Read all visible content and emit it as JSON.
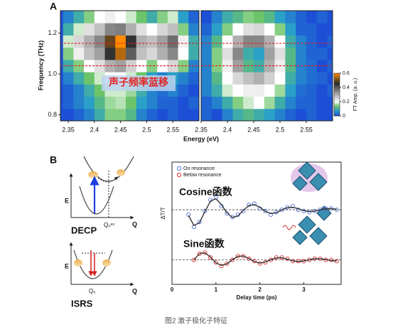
{
  "figure_labels": [
    "A",
    "B"
  ],
  "chart_data": [
    {
      "type": "heatmap",
      "ylabel": "Frequency (THz)",
      "xlabel": "Energy (eV)",
      "annotation": "声子频率蓝移",
      "xlim": [
        2.335,
        2.6
      ],
      "ylim": [
        0.77,
        1.31
      ],
      "xticks": [
        2.35,
        2.4,
        2.45,
        2.5,
        2.55
      ],
      "yticks": [
        0.8,
        {
          "value": 1,
          "label": "1.0"
        },
        1.2
      ],
      "reference_lines": [
        1.04,
        1.15
      ],
      "reference_color": "#e02020",
      "zlim": [
        0,
        0.6
      ],
      "colorscale": [
        [
          0,
          "#1d4fd6"
        ],
        [
          0.08,
          "#2aa0c8"
        ],
        [
          0.14,
          "#6cc46a"
        ],
        [
          0.2,
          "#ffffff"
        ],
        [
          0.32,
          "#a0a0a0"
        ],
        [
          0.46,
          "#2a2a2a"
        ],
        [
          0.6,
          "#ff8a00"
        ]
      ],
      "x": [
        2.35,
        2.37,
        2.39,
        2.41,
        2.43,
        2.45,
        2.47,
        2.49,
        2.51,
        2.53,
        2.55,
        2.57,
        2.59
      ],
      "y": [
        0.8,
        0.86,
        0.92,
        0.98,
        1.04,
        1.1,
        1.16,
        1.22,
        1.28
      ],
      "z": [
        [
          0,
          0.02,
          0.05,
          0.1,
          0.15,
          0.15,
          0.12,
          0.05,
          0.02,
          0,
          0.02,
          0,
          0
        ],
        [
          0.02,
          0.05,
          0.08,
          0.12,
          0.16,
          0.17,
          0.14,
          0.08,
          0.05,
          0.02,
          0.02,
          0,
          0.02
        ],
        [
          0.02,
          0.05,
          0.1,
          0.14,
          0.18,
          0.18,
          0.16,
          0.1,
          0.05,
          0.03,
          0.05,
          0.02,
          0
        ],
        [
          0.05,
          0.1,
          0.14,
          0.18,
          0.2,
          0.2,
          0.18,
          0.14,
          0.08,
          0.05,
          0.08,
          0.05,
          0.02
        ],
        [
          0.1,
          0.15,
          0.2,
          0.24,
          0.3,
          0.32,
          0.26,
          0.2,
          0.15,
          0.2,
          0.25,
          0.15,
          0.05
        ],
        [
          0.15,
          0.22,
          0.28,
          0.32,
          0.45,
          0.55,
          0.4,
          0.28,
          0.25,
          0.3,
          0.35,
          0.2,
          0.1
        ],
        [
          0.18,
          0.25,
          0.3,
          0.35,
          0.5,
          0.6,
          0.45,
          0.3,
          0.28,
          0.32,
          0.38,
          0.22,
          0.1
        ],
        [
          0.1,
          0.18,
          0.24,
          0.28,
          0.35,
          0.36,
          0.3,
          0.24,
          0.2,
          0.25,
          0.28,
          0.15,
          0.05
        ],
        [
          0.05,
          0.1,
          0.15,
          0.2,
          0.22,
          0.2,
          0.18,
          0.14,
          0.1,
          0.15,
          0.18,
          0.08,
          0.02
        ]
      ]
    },
    {
      "type": "heatmap",
      "xlim": [
        2.35,
        2.6
      ],
      "ylim": [
        0.77,
        1.31
      ],
      "xticks": [
        2.35,
        2.4,
        2.45,
        2.5,
        2.55
      ],
      "reference_lines": [
        1.04,
        1.15
      ],
      "reference_color": "#e02020",
      "zlim": [
        0,
        0.6
      ],
      "colorscale": [
        [
          0,
          "#1d4fd6"
        ],
        [
          0.08,
          "#2aa0c8"
        ],
        [
          0.14,
          "#6cc46a"
        ],
        [
          0.2,
          "#ffffff"
        ],
        [
          0.32,
          "#a0a0a0"
        ],
        [
          0.46,
          "#2a2a2a"
        ],
        [
          0.6,
          "#ff8a00"
        ]
      ],
      "colorbar": {
        "label": "FT Amp. (a. u.)",
        "ticks": [
          0,
          0.2,
          0.4,
          0.6
        ]
      },
      "x": [
        2.36,
        2.38,
        2.4,
        2.42,
        2.44,
        2.46,
        2.48,
        2.5,
        2.52,
        2.54,
        2.56,
        2.58,
        2.6
      ],
      "y": [
        0.8,
        0.86,
        0.92,
        0.98,
        1.04,
        1.1,
        1.16,
        1.22,
        1.28
      ],
      "z": [
        [
          0.02,
          0,
          0.05,
          0.1,
          0.12,
          0.1,
          0.08,
          0.05,
          0.02,
          0,
          0.02,
          0,
          0
        ],
        [
          0.02,
          0.05,
          0.1,
          0.15,
          0.18,
          0.2,
          0.16,
          0.1,
          0.05,
          0.02,
          0.02,
          0,
          0
        ],
        [
          0.05,
          0.1,
          0.18,
          0.2,
          0.22,
          0.22,
          0.2,
          0.16,
          0.08,
          0.03,
          0.02,
          0,
          0.02
        ],
        [
          0.05,
          0.12,
          0.2,
          0.25,
          0.28,
          0.3,
          0.26,
          0.2,
          0.1,
          0.05,
          0.03,
          0.02,
          0
        ],
        [
          0.05,
          0.15,
          0.22,
          0.32,
          0.12,
          0.1,
          0.3,
          0.22,
          0.12,
          0.05,
          0.03,
          0,
          0.02
        ],
        [
          0.05,
          0.15,
          0.24,
          0.35,
          0.1,
          0.08,
          0.32,
          0.24,
          0.12,
          0.05,
          0.02,
          0.02,
          0
        ],
        [
          0.05,
          0.12,
          0.2,
          0.3,
          0.35,
          0.35,
          0.3,
          0.2,
          0.1,
          0.05,
          0.02,
          0,
          0.02
        ],
        [
          0.02,
          0.08,
          0.15,
          0.2,
          0.24,
          0.25,
          0.2,
          0.15,
          0.08,
          0.02,
          0.02,
          0,
          0
        ],
        [
          0,
          0.05,
          0.1,
          0.12,
          0.15,
          0.14,
          0.12,
          0.08,
          0.05,
          0.02,
          0,
          0.02,
          0
        ]
      ]
    },
    {
      "type": "line",
      "xlabel": "Delay time (ps)",
      "ylabel": "ΔT/T",
      "xlim": [
        0,
        3.85
      ],
      "ylim": [
        0,
        1
      ],
      "xticks": [
        0,
        1,
        2,
        3
      ],
      "annotations": [
        "Cosine函数",
        "Sine函数"
      ],
      "reference_lines": [
        0.61,
        0.2
      ],
      "series": [
        {
          "name": "On resonance",
          "color": "#5577dd",
          "marker": "circle-open",
          "x": [
            0.375,
            0.5,
            0.625,
            0.75,
            0.875,
            1,
            1.125,
            1.25,
            1.375,
            1.5,
            1.625,
            1.75,
            1.875,
            2,
            2.125,
            2.25,
            2.375,
            2.5,
            2.625,
            2.75,
            2.875,
            3,
            3.125,
            3.25,
            3.375,
            3.5,
            3.625,
            3.75
          ],
          "values": [
            0.57,
            0.47,
            0.51,
            0.6,
            0.69,
            0.71,
            0.64,
            0.58,
            0.55,
            0.57,
            0.6,
            0.65,
            0.66,
            0.62,
            0.6,
            0.57,
            0.59,
            0.61,
            0.63,
            0.64,
            0.61,
            0.6,
            0.59,
            0.6,
            0.61,
            0.62,
            0.62,
            0.61
          ]
        },
        {
          "name": "Below resonance",
          "color": "#e03030",
          "marker": "circle-open",
          "x": [
            0.5,
            0.625,
            0.75,
            0.875,
            1,
            1.125,
            1.25,
            1.375,
            1.5,
            1.625,
            1.75,
            1.875,
            2,
            2.125,
            2.25,
            2.375,
            2.5,
            2.625,
            2.75,
            2.875,
            3,
            3.125,
            3.25,
            3.375,
            3.5,
            3.625,
            3.75
          ],
          "values": [
            0.2,
            0.25,
            0.26,
            0.22,
            0.18,
            0.15,
            0.17,
            0.2,
            0.23,
            0.23,
            0.21,
            0.19,
            0.17,
            0.18,
            0.2,
            0.22,
            0.22,
            0.21,
            0.19,
            0.19,
            0.19,
            0.2,
            0.21,
            0.21,
            0.2,
            0.2,
            0.19
          ]
        }
      ],
      "fits": [
        {
          "color": "#333333",
          "x": [
            0.375,
            0.5,
            0.625,
            0.75,
            0.875,
            1,
            1.125,
            1.25,
            1.375,
            1.5,
            1.625,
            1.75,
            1.875,
            2,
            2.125,
            2.25,
            2.375,
            2.5,
            2.625,
            2.75,
            2.875,
            3,
            3.125,
            3.25,
            3.375,
            3.5,
            3.625,
            3.75
          ],
          "values": [
            0.564,
            0.481,
            0.504,
            0.596,
            0.681,
            0.7,
            0.653,
            0.585,
            0.547,
            0.56,
            0.605,
            0.645,
            0.653,
            0.63,
            0.597,
            0.579,
            0.586,
            0.609,
            0.628,
            0.631,
            0.619,
            0.603,
            0.595,
            0.599,
            0.61,
            0.619,
            0.62,
            0.614
          ]
        },
        {
          "color": "#333333",
          "x": [
            0.5,
            0.625,
            0.75,
            0.875,
            1,
            1.125,
            1.25,
            1.375,
            1.5,
            1.625,
            1.75,
            1.875,
            2,
            2.125,
            2.25,
            2.375,
            2.5,
            2.625,
            2.75,
            2.875,
            3,
            3.125,
            3.25,
            3.375,
            3.5,
            3.625,
            3.75
          ],
          "values": [
            0.2,
            0.251,
            0.258,
            0.223,
            0.177,
            0.155,
            0.168,
            0.202,
            0.229,
            0.232,
            0.212,
            0.186,
            0.174,
            0.183,
            0.202,
            0.217,
            0.218,
            0.206,
            0.192,
            0.186,
            0.191,
            0.201,
            0.21,
            0.21,
            0.203,
            0.195,
            0.192
          ]
        }
      ]
    }
  ],
  "diagrams": {
    "decp": {
      "title": "DECP",
      "e_axis": "E",
      "q_axis": "Q",
      "q0": "Q₀ᵉˣ"
    },
    "isrs": {
      "title": "ISRS",
      "e_axis": "E",
      "q_axis": "Q",
      "q0": "Q₀"
    }
  },
  "caption": "图2 激子极化子特征"
}
